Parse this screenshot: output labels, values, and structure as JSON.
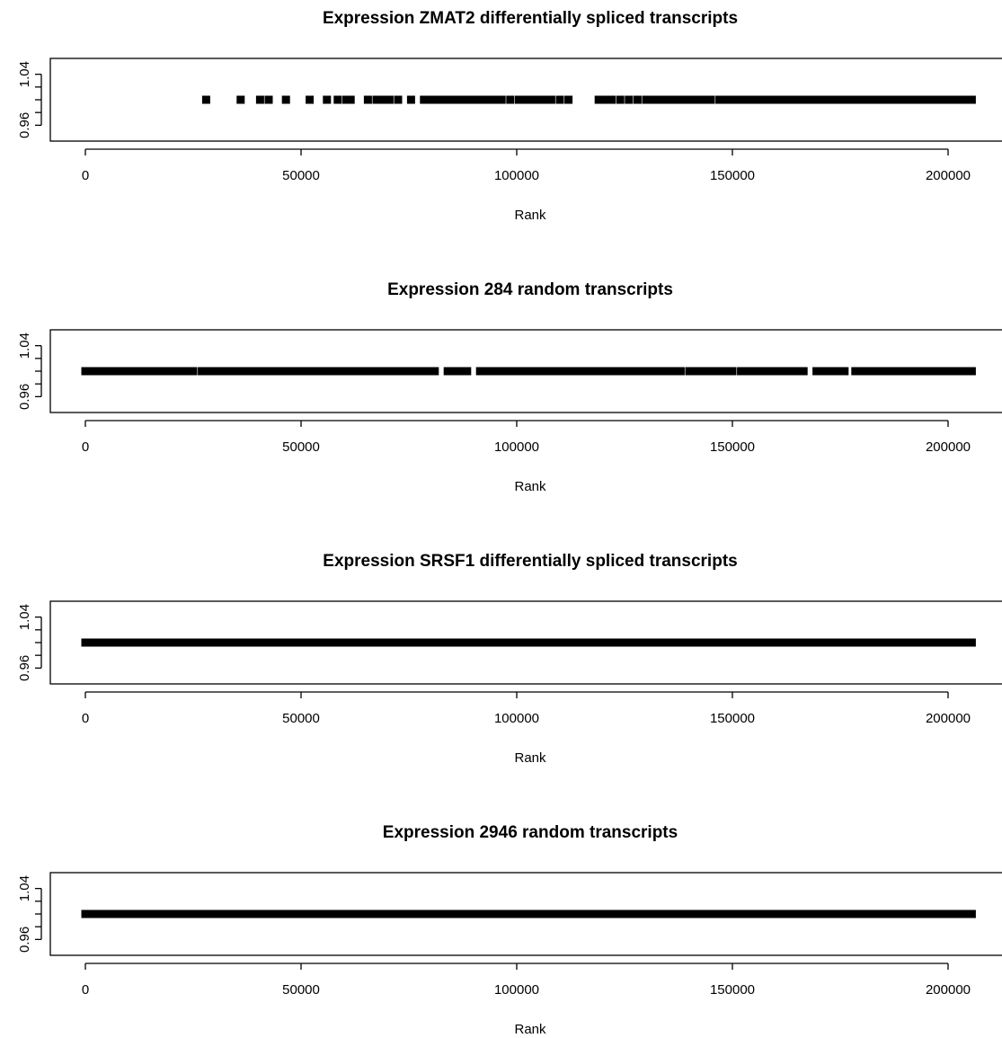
{
  "chart_data": [
    {
      "type": "scatter",
      "title": "Expression ZMAT2 differentially spliced transcripts",
      "xlabel": "Rank",
      "ylabel": "",
      "x_ticks": [
        0,
        50000,
        100000,
        150000,
        200000
      ],
      "y_ticks": [
        0.96,
        1.04
      ],
      "xlim": [
        -8000,
        214000
      ],
      "ylim": [
        0.945,
        1.055
      ],
      "y": 1.0,
      "marker": "square",
      "color": "#000000",
      "x": [
        28000,
        36000,
        40500,
        42500,
        46500,
        52000,
        56000,
        58500,
        60500,
        61500,
        65500,
        67500,
        69000,
        70500,
        72500,
        75500,
        78500,
        80000,
        81500,
        83000,
        84500,
        86000,
        87500,
        89000,
        90500,
        92000,
        93500,
        95000,
        96500,
        98500,
        100500,
        102000,
        103500,
        105000,
        106500,
        108000,
        110000,
        112000,
        119000,
        120500,
        122000,
        124000,
        126000,
        128000,
        130000,
        131500,
        133000,
        134500,
        136000,
        137500,
        139000,
        140500,
        142000,
        143500,
        145000,
        147000,
        148500,
        150000,
        151500,
        153000,
        154500,
        156000,
        157500,
        159000,
        160500,
        162000,
        163500,
        165000,
        166500,
        168000,
        169500,
        171000,
        172500,
        174000,
        175500,
        177000,
        178500,
        180000,
        181500,
        183000,
        184500,
        186000,
        187500,
        189000,
        190500,
        192000,
        193500,
        195000,
        196500,
        198000,
        199500,
        201000,
        202500,
        204000,
        205500
      ]
    },
    {
      "type": "scatter",
      "title": "Expression 284 random transcripts",
      "xlabel": "Rank",
      "ylabel": "",
      "x_ticks": [
        0,
        50000,
        100000,
        150000,
        200000
      ],
      "y_ticks": [
        0.96,
        1.04
      ],
      "xlim": [
        -8000,
        214000
      ],
      "ylim": [
        0.945,
        1.055
      ],
      "y": 1.0,
      "marker": "square",
      "color": "#000000",
      "segments": [
        [
          0,
          3500
        ],
        [
          5000,
          10500
        ],
        [
          12000,
          20500
        ],
        [
          21500,
          25000
        ],
        [
          27000,
          34500
        ],
        [
          35500,
          52500
        ],
        [
          54000,
          61500
        ],
        [
          62500,
          69500
        ],
        [
          70500,
          75000
        ],
        [
          75500,
          77000
        ],
        [
          78000,
          81000
        ],
        [
          84000,
          88500
        ],
        [
          91500,
          99000
        ],
        [
          100000,
          106000
        ],
        [
          107500,
          114500
        ],
        [
          116000,
          122500
        ],
        [
          123000,
          125000
        ],
        [
          126000,
          133000
        ],
        [
          134000,
          138000
        ],
        [
          140000,
          144500
        ],
        [
          145500,
          150000
        ],
        [
          152000,
          160500
        ],
        [
          161500,
          166500
        ],
        [
          169500,
          176000
        ],
        [
          178500,
          205500
        ]
      ]
    },
    {
      "type": "scatter",
      "title": "Expression SRSF1 differentially spliced transcripts",
      "xlabel": "Rank",
      "ylabel": "",
      "x_ticks": [
        0,
        50000,
        100000,
        150000,
        200000
      ],
      "y_ticks": [
        0.96,
        1.04
      ],
      "xlim": [
        -8000,
        214000
      ],
      "ylim": [
        0.945,
        1.055
      ],
      "y": 1.0,
      "marker": "square",
      "color": "#000000",
      "segments": [
        [
          0,
          2500
        ],
        [
          3000,
          20500
        ],
        [
          21000,
          205500
        ]
      ]
    },
    {
      "type": "scatter",
      "title": "Expression 2946 random transcripts",
      "xlabel": "Rank",
      "ylabel": "",
      "x_ticks": [
        0,
        50000,
        100000,
        150000,
        200000
      ],
      "y_ticks": [
        0.96,
        1.04
      ],
      "xlim": [
        -8000,
        214000
      ],
      "ylim": [
        0.945,
        1.055
      ],
      "y": 1.0,
      "marker": "square",
      "color": "#000000",
      "segments": [
        [
          0,
          205500
        ]
      ]
    }
  ]
}
